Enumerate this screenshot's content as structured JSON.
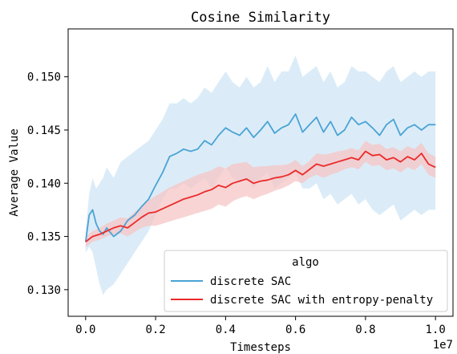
{
  "chart_data": {
    "type": "line",
    "title": "Cosine Similarity",
    "xlabel": "Timesteps",
    "ylabel": "Average Value",
    "x_offset_label": "1e7",
    "xlim": [
      -0.05,
      1.05
    ],
    "ylim": [
      0.1275,
      0.1545
    ],
    "x_ticks": [
      0.0,
      0.2,
      0.4,
      0.6,
      0.8,
      1.0
    ],
    "x_tick_labels": [
      "0.0",
      "0.2",
      "0.4",
      "0.6",
      "0.8",
      "1.0"
    ],
    "y_ticks": [
      0.13,
      0.135,
      0.14,
      0.145,
      0.15
    ],
    "y_tick_labels": [
      "0.130",
      "0.135",
      "0.140",
      "0.145",
      "0.150"
    ],
    "grid": false,
    "legend": {
      "title": "algo",
      "placement": "lower-right"
    },
    "series": [
      {
        "name": "discrete SAC",
        "color": "#4aa3d5",
        "band_color": "#cfe6f5",
        "x": [
          0.0,
          0.01,
          0.02,
          0.03,
          0.04,
          0.05,
          0.06,
          0.08,
          0.1,
          0.12,
          0.14,
          0.16,
          0.18,
          0.2,
          0.22,
          0.24,
          0.26,
          0.28,
          0.3,
          0.32,
          0.34,
          0.36,
          0.38,
          0.4,
          0.42,
          0.44,
          0.46,
          0.48,
          0.5,
          0.52,
          0.54,
          0.56,
          0.58,
          0.6,
          0.62,
          0.64,
          0.66,
          0.68,
          0.7,
          0.72,
          0.74,
          0.76,
          0.78,
          0.8,
          0.82,
          0.84,
          0.86,
          0.88,
          0.9,
          0.92,
          0.94,
          0.96,
          0.98,
          1.0
        ],
        "values": [
          0.1345,
          0.137,
          0.1375,
          0.1362,
          0.1355,
          0.1352,
          0.1358,
          0.135,
          0.1355,
          0.1365,
          0.137,
          0.1378,
          0.1385,
          0.1398,
          0.141,
          0.1425,
          0.1428,
          0.1432,
          0.143,
          0.1432,
          0.144,
          0.1436,
          0.1445,
          0.1452,
          0.1448,
          0.1445,
          0.1452,
          0.1443,
          0.145,
          0.1458,
          0.1447,
          0.1452,
          0.1455,
          0.1465,
          0.1448,
          0.1455,
          0.1462,
          0.1448,
          0.1458,
          0.1445,
          0.145,
          0.1462,
          0.1455,
          0.1458,
          0.1452,
          0.1445,
          0.1455,
          0.146,
          0.1445,
          0.1452,
          0.1455,
          0.145,
          0.1455,
          0.1455
        ],
        "band_low": [
          0.1335,
          0.134,
          0.1335,
          0.132,
          0.1305,
          0.1295,
          0.13,
          0.1305,
          0.1315,
          0.1325,
          0.1335,
          0.1345,
          0.1355,
          0.137,
          0.1385,
          0.1395,
          0.1395,
          0.14,
          0.1395,
          0.14,
          0.1405,
          0.1395,
          0.1405,
          0.1415,
          0.1405,
          0.14,
          0.1405,
          0.1395,
          0.1405,
          0.141,
          0.1395,
          0.14,
          0.1405,
          0.141,
          0.1395,
          0.1395,
          0.14,
          0.1385,
          0.139,
          0.138,
          0.1385,
          0.139,
          0.138,
          0.1385,
          0.1375,
          0.137,
          0.1375,
          0.138,
          0.1365,
          0.137,
          0.1375,
          0.137,
          0.1375,
          0.1375
        ],
        "band_high": [
          0.1355,
          0.139,
          0.1405,
          0.1395,
          0.14,
          0.1405,
          0.1415,
          0.1405,
          0.142,
          0.1425,
          0.143,
          0.1435,
          0.144,
          0.145,
          0.146,
          0.1475,
          0.1475,
          0.148,
          0.1475,
          0.148,
          0.149,
          0.1485,
          0.1495,
          0.1505,
          0.1495,
          0.149,
          0.15,
          0.149,
          0.1495,
          0.151,
          0.1495,
          0.1505,
          0.1505,
          0.152,
          0.15,
          0.1505,
          0.151,
          0.1495,
          0.1505,
          0.149,
          0.1495,
          0.151,
          0.1505,
          0.1505,
          0.15,
          0.1495,
          0.1505,
          0.151,
          0.1495,
          0.15,
          0.1505,
          0.15,
          0.1505,
          0.1505
        ]
      },
      {
        "name": "discrete SAC with entropy-penalty",
        "color": "#ec2a2a",
        "band_color": "#f6c6c6",
        "x": [
          0.0,
          0.02,
          0.04,
          0.06,
          0.08,
          0.1,
          0.12,
          0.14,
          0.16,
          0.18,
          0.2,
          0.22,
          0.24,
          0.26,
          0.28,
          0.3,
          0.32,
          0.34,
          0.36,
          0.38,
          0.4,
          0.42,
          0.44,
          0.46,
          0.48,
          0.5,
          0.52,
          0.54,
          0.56,
          0.58,
          0.6,
          0.62,
          0.64,
          0.66,
          0.68,
          0.7,
          0.72,
          0.74,
          0.76,
          0.78,
          0.8,
          0.82,
          0.84,
          0.86,
          0.88,
          0.9,
          0.92,
          0.94,
          0.96,
          0.98,
          1.0
        ],
        "values": [
          0.1345,
          0.135,
          0.1352,
          0.1355,
          0.1358,
          0.136,
          0.1358,
          0.1363,
          0.1368,
          0.1372,
          0.1373,
          0.1376,
          0.1379,
          0.1382,
          0.1385,
          0.1387,
          0.1389,
          0.1392,
          0.1394,
          0.1398,
          0.1396,
          0.14,
          0.1402,
          0.1404,
          0.14,
          0.1402,
          0.1403,
          0.1405,
          0.1406,
          0.1408,
          0.1412,
          0.1408,
          0.1413,
          0.1418,
          0.1416,
          0.1418,
          0.142,
          0.1422,
          0.1424,
          0.1422,
          0.143,
          0.1426,
          0.1427,
          0.1422,
          0.1424,
          0.142,
          0.1425,
          0.1422,
          0.1428,
          0.1418,
          0.1415
        ],
        "band_low": [
          0.134,
          0.1345,
          0.1347,
          0.135,
          0.1352,
          0.1353,
          0.135,
          0.1354,
          0.1358,
          0.136,
          0.136,
          0.1362,
          0.1364,
          0.1366,
          0.1368,
          0.137,
          0.1372,
          0.1374,
          0.1376,
          0.138,
          0.1378,
          0.1383,
          0.1386,
          0.1388,
          0.1385,
          0.1388,
          0.139,
          0.1393,
          0.1395,
          0.1398,
          0.1402,
          0.14,
          0.1405,
          0.1408,
          0.1405,
          0.1408,
          0.141,
          0.1413,
          0.1415,
          0.1413,
          0.142,
          0.1416,
          0.1417,
          0.1412,
          0.1414,
          0.141,
          0.1415,
          0.1412,
          0.1418,
          0.1408,
          0.1405
        ],
        "band_high": [
          0.135,
          0.1355,
          0.1358,
          0.1362,
          0.1365,
          0.1368,
          0.1367,
          0.1373,
          0.1378,
          0.1384,
          0.1388,
          0.1392,
          0.1396,
          0.1399,
          0.1402,
          0.1405,
          0.1408,
          0.141,
          0.1412,
          0.1416,
          0.1414,
          0.1418,
          0.1419,
          0.142,
          0.1415,
          0.1416,
          0.1416,
          0.1417,
          0.1417,
          0.1418,
          0.1422,
          0.1416,
          0.1421,
          0.1428,
          0.1427,
          0.1428,
          0.143,
          0.1431,
          0.1433,
          0.1431,
          0.144,
          0.1436,
          0.1437,
          0.1432,
          0.1434,
          0.143,
          0.1435,
          0.1432,
          0.1438,
          0.1428,
          0.1425
        ]
      }
    ]
  }
}
